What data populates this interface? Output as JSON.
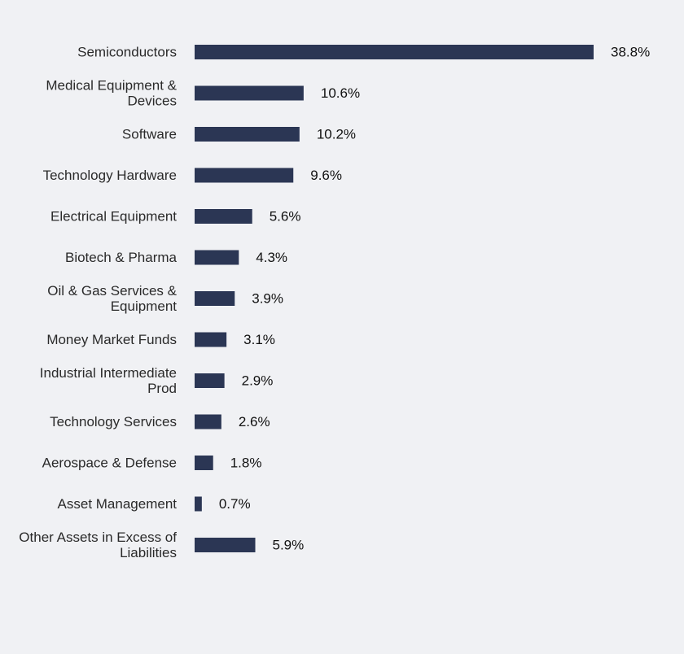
{
  "chart_data": {
    "type": "bar",
    "orientation": "horizontal",
    "title": "",
    "xlabel": "",
    "ylabel": "",
    "grid": false,
    "legend": "none",
    "bar_color": "#2b3654",
    "background_color": "#f0f1f4",
    "xlim": [
      0,
      38.8
    ],
    "categories": [
      "Semiconductors",
      "Medical Equipment & Devices",
      "Software",
      "Technology Hardware",
      "Electrical Equipment",
      "Biotech & Pharma",
      "Oil & Gas Services & Equipment",
      "Money Market Funds",
      "Industrial Intermediate Prod",
      "Technology Services",
      "Aerospace & Defense",
      "Asset Management",
      "Other Assets in Excess of Liabilities"
    ],
    "category_lines": [
      [
        "Semiconductors"
      ],
      [
        "Medical Equipment &",
        "Devices"
      ],
      [
        "Software"
      ],
      [
        "Technology Hardware"
      ],
      [
        "Electrical Equipment"
      ],
      [
        "Biotech & Pharma"
      ],
      [
        "Oil & Gas Services &",
        "Equipment"
      ],
      [
        "Money Market Funds"
      ],
      [
        "Industrial Intermediate",
        "Prod"
      ],
      [
        "Technology Services"
      ],
      [
        "Aerospace & Defense"
      ],
      [
        "Asset Management"
      ],
      [
        "Other Assets in Excess of",
        "Liabilities"
      ]
    ],
    "values": [
      38.8,
      10.6,
      10.2,
      9.6,
      5.6,
      4.3,
      3.9,
      3.1,
      2.9,
      2.6,
      1.8,
      0.7,
      5.9
    ],
    "value_labels": [
      "38.8%",
      "10.6%",
      "10.2%",
      "9.6%",
      "5.6%",
      "4.3%",
      "3.9%",
      "3.1%",
      "2.9%",
      "2.6%",
      "1.8%",
      "0.7%",
      "5.9%"
    ]
  }
}
